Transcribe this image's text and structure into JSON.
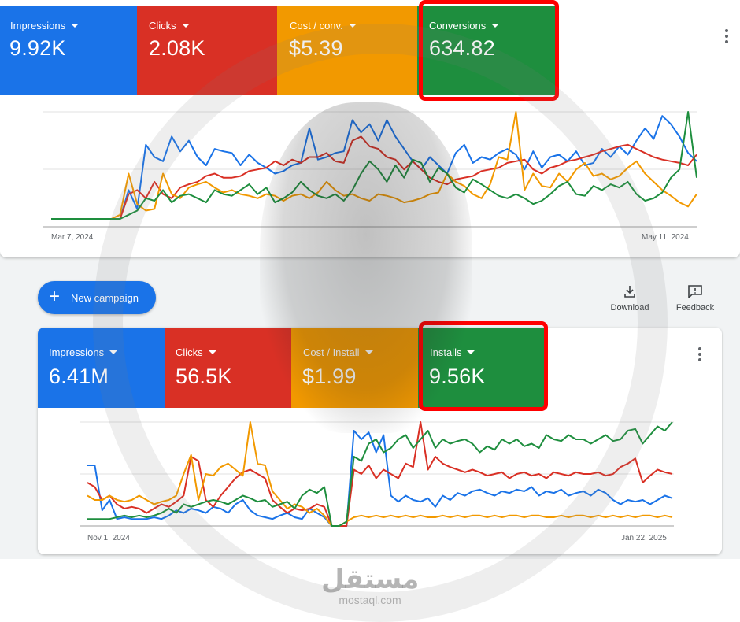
{
  "top_card": {
    "metrics": [
      {
        "label": "Impressions",
        "value": "9.92K",
        "color": "#1a73e8"
      },
      {
        "label": "Clicks",
        "value": "2.08K",
        "color": "#d93025"
      },
      {
        "label": "Cost / conv.",
        "value": "$5.39",
        "color": "#f29900"
      },
      {
        "label": "Conversions",
        "value": "634.82",
        "color": "#1e8e3e"
      }
    ],
    "date_start": "Mar 7, 2024",
    "date_end": "May 11, 2024",
    "more_icon": "more-vert-icon"
  },
  "actions": {
    "new_campaign": "New campaign",
    "download": "Download",
    "feedback": "Feedback"
  },
  "bottom_card": {
    "metrics": [
      {
        "label": "Impressions",
        "value": "6.41M",
        "color": "#1a73e8"
      },
      {
        "label": "Clicks",
        "value": "56.5K",
        "color": "#d93025"
      },
      {
        "label": "Cost / Install",
        "value": "$1.99",
        "color": "#f29900"
      },
      {
        "label": "Installs",
        "value": "9.56K",
        "color": "#1e8e3e"
      }
    ],
    "date_start": "Nov 1, 2024",
    "date_end": "Jan 22, 2025",
    "more_icon": "more-vert-icon"
  },
  "highlight_color": "#ff0000",
  "watermark": {
    "arabic": "مستقل",
    "latin": "mostaql.com"
  },
  "chart_data": [
    {
      "type": "line",
      "series": [
        {
          "color": "#1a73e8",
          "values": [
            0,
            0,
            0,
            0,
            0,
            0,
            0,
            0,
            0,
            0.35,
            0.12,
            0.9,
            0.75,
            0.7,
            1.0,
            0.82,
            0.95,
            0.75,
            0.65,
            0.85,
            0.82,
            0.8,
            0.65,
            0.78,
            0.68,
            0.62,
            0.55,
            0.58,
            0.65,
            0.68,
            1.1,
            0.72,
            0.75,
            0.8,
            0.82,
            1.2,
            1.05,
            1.15,
            0.95,
            1.2,
            1.0,
            0.85,
            0.7,
            0.6,
            0.75,
            0.65,
            0.55,
            0.8,
            0.9,
            0.68,
            0.75,
            0.72,
            0.8,
            0.85,
            0.78,
            0.6,
            0.82,
            0.62,
            0.75,
            0.78,
            0.7,
            0.82,
            0.65,
            0.68,
            0.85,
            0.75,
            0.88,
            0.78,
            0.95,
            1.1,
            0.97,
            1.25,
            1.15,
            1.0,
            0.8,
            0.7
          ]
        },
        {
          "color": "#d93025",
          "values": [
            0,
            0,
            0,
            0,
            0,
            0,
            0,
            0,
            0,
            0.3,
            0.35,
            0.25,
            0.45,
            0.3,
            0.25,
            0.38,
            0.42,
            0.45,
            0.52,
            0.55,
            0.5,
            0.5,
            0.52,
            0.58,
            0.6,
            0.62,
            0.7,
            0.65,
            0.72,
            0.68,
            0.75,
            0.75,
            0.8,
            0.7,
            0.68,
            0.95,
            1.0,
            0.88,
            0.85,
            0.75,
            0.72,
            0.6,
            0.7,
            0.6,
            0.5,
            0.45,
            0.42,
            0.48,
            0.5,
            0.52,
            0.58,
            0.6,
            0.62,
            0.68,
            0.7,
            0.72,
            0.6,
            0.55,
            0.62,
            0.65,
            0.7,
            0.72,
            0.75,
            0.78,
            0.82,
            0.85,
            0.88,
            0.9,
            0.85,
            0.8,
            0.75,
            0.72,
            0.7,
            0.68,
            0.65,
            0.78
          ]
        },
        {
          "color": "#f29900",
          "values": [
            0,
            0,
            0,
            0,
            0,
            0,
            0,
            0,
            0.05,
            0.55,
            0.18,
            0.1,
            0.12,
            0.55,
            0.3,
            0.25,
            0.38,
            0.42,
            0.45,
            0.38,
            0.32,
            0.35,
            0.3,
            0.28,
            0.25,
            0.3,
            0.28,
            0.22,
            0.28,
            0.3,
            0.25,
            0.32,
            0.45,
            0.35,
            0.28,
            0.3,
            0.25,
            0.22,
            0.3,
            0.28,
            0.25,
            0.2,
            0.22,
            0.25,
            0.3,
            0.32,
            0.55,
            0.45,
            0.4,
            0.3,
            0.25,
            0.42,
            0.75,
            0.72,
            1.3,
            0.35,
            0.55,
            0.4,
            0.38,
            0.55,
            0.45,
            0.6,
            0.68,
            0.52,
            0.55,
            0.48,
            0.52,
            0.62,
            0.7,
            0.55,
            0.45,
            0.35,
            0.28,
            0.2,
            0.15,
            0.3
          ]
        },
        {
          "color": "#1e8e3e",
          "values": [
            0,
            0,
            0,
            0,
            0,
            0,
            0,
            0,
            0,
            0.05,
            0.1,
            0.25,
            0.22,
            0.35,
            0.2,
            0.28,
            0.3,
            0.25,
            0.2,
            0.35,
            0.3,
            0.28,
            0.35,
            0.42,
            0.3,
            0.38,
            0.2,
            0.25,
            0.32,
            0.45,
            0.35,
            0.28,
            0.25,
            0.3,
            0.22,
            0.35,
            0.55,
            0.7,
            0.6,
            0.45,
            0.65,
            0.5,
            0.72,
            0.68,
            0.45,
            0.62,
            0.55,
            0.38,
            0.32,
            0.48,
            0.42,
            0.35,
            0.28,
            0.25,
            0.3,
            0.25,
            0.18,
            0.22,
            0.3,
            0.4,
            0.45,
            0.3,
            0.28,
            0.4,
            0.35,
            0.42,
            0.38,
            0.45,
            0.3,
            0.22,
            0.25,
            0.32,
            0.5,
            0.6,
            1.3,
            0.5
          ]
        }
      ],
      "x_start": "Mar 7, 2024",
      "x_end": "May 11, 2024",
      "grid": true
    },
    {
      "type": "line",
      "series": [
        {
          "color": "#1a73e8",
          "values": [
            0.7,
            0.7,
            0.18,
            0.3,
            0.08,
            0.1,
            0.08,
            0.08,
            0.08,
            0.1,
            0.08,
            0.12,
            0.18,
            0.15,
            0.2,
            0.18,
            0.15,
            0.22,
            0.2,
            0.15,
            0.25,
            0.3,
            0.18,
            0.12,
            0.1,
            0.08,
            0.12,
            0.15,
            0.1,
            0.08,
            0.2,
            0.15,
            0.1,
            0,
            0,
            0,
            1.1,
            1.0,
            1.08,
            0.85,
            1.05,
            0.35,
            0.28,
            0.35,
            0.3,
            0.28,
            0.32,
            0.22,
            0.35,
            0.3,
            0.38,
            0.35,
            0.4,
            0.42,
            0.38,
            0.35,
            0.4,
            0.38,
            0.42,
            0.4,
            0.45,
            0.35,
            0.4,
            0.38,
            0.42,
            0.35,
            0.38,
            0.4,
            0.35,
            0.42,
            0.38,
            0.3,
            0.25,
            0.3,
            0.28,
            0.3,
            0.25,
            0.3,
            0.35,
            0.32
          ]
        },
        {
          "color": "#d93025",
          "values": [
            0.5,
            0.45,
            0.3,
            0.35,
            0.25,
            0.2,
            0.22,
            0.2,
            0.15,
            0.2,
            0.25,
            0.22,
            0.28,
            0.35,
            0.8,
            0.75,
            0.3,
            0.22,
            0.35,
            0.45,
            0.55,
            0.62,
            0.65,
            0.6,
            0.55,
            0.3,
            0.22,
            0.15,
            0.2,
            0.18,
            0.2,
            0.25,
            0.22,
            0,
            0,
            0,
            0.65,
            0.6,
            0.7,
            0.55,
            0.65,
            0.6,
            0.55,
            0.72,
            0.68,
            1.2,
            0.65,
            0.8,
            0.72,
            0.68,
            0.65,
            0.62,
            0.65,
            0.62,
            0.58,
            0.6,
            0.62,
            0.55,
            0.6,
            0.62,
            0.58,
            0.6,
            0.55,
            0.62,
            0.6,
            0.58,
            0.62,
            0.6,
            0.6,
            0.62,
            0.58,
            0.6,
            0.68,
            0.72,
            0.78,
            0.5,
            0.58,
            0.65,
            0.62,
            0.6
          ]
        },
        {
          "color": "#f29900",
          "values": [
            0.35,
            0.3,
            0.3,
            0.35,
            0.3,
            0.28,
            0.3,
            0.35,
            0.3,
            0.25,
            0.28,
            0.3,
            0.35,
            0.6,
            0.82,
            0.3,
            0.6,
            0.58,
            0.68,
            0.72,
            0.65,
            0.58,
            1.2,
            0.72,
            0.7,
            0.4,
            0.3,
            0.2,
            0.25,
            0.22,
            0.15,
            0.2,
            0.12,
            0,
            0,
            0.05,
            0.1,
            0.12,
            0.1,
            0.12,
            0.1,
            0.12,
            0.1,
            0.12,
            0.1,
            0.12,
            0.1,
            0.1,
            0.12,
            0.1,
            0.12,
            0.1,
            0.12,
            0.12,
            0.1,
            0.12,
            0.1,
            0.12,
            0.12,
            0.1,
            0.12,
            0.12,
            0.1,
            0.1,
            0.12,
            0.1,
            0.12,
            0.12,
            0.1,
            0.12,
            0.1,
            0.12,
            0.1,
            0.12,
            0.1,
            0.12,
            0.12,
            0.1,
            0.12,
            0.1
          ]
        },
        {
          "color": "#1e8e3e",
          "values": [
            0.08,
            0.08,
            0.08,
            0.08,
            0.1,
            0.12,
            0.1,
            0.12,
            0.1,
            0.12,
            0.15,
            0.2,
            0.15,
            0.25,
            0.22,
            0.25,
            0.28,
            0.3,
            0.28,
            0.25,
            0.3,
            0.35,
            0.32,
            0.28,
            0.3,
            0.22,
            0.25,
            0.28,
            0.2,
            0.35,
            0.42,
            0.38,
            0.45,
            0,
            0,
            0.05,
            0.8,
            0.75,
            0.95,
            1.0,
            0.85,
            0.9,
            1.0,
            1.05,
            0.9,
            1.0,
            1.1,
            0.9,
            1.0,
            0.95,
            0.98,
            1.0,
            0.95,
            0.85,
            0.92,
            0.88,
            1.0,
            0.95,
            1.0,
            0.92,
            0.95,
            0.9,
            1.05,
            1.0,
            0.98,
            1.05,
            1.0,
            1.0,
            0.95,
            1.0,
            1.05,
            0.98,
            1.0,
            1.1,
            1.12,
            0.95,
            1.05,
            1.15,
            1.1,
            1.2
          ]
        }
      ],
      "x_start": "Nov 1, 2024",
      "x_end": "Jan 22, 2025",
      "grid": true
    }
  ]
}
